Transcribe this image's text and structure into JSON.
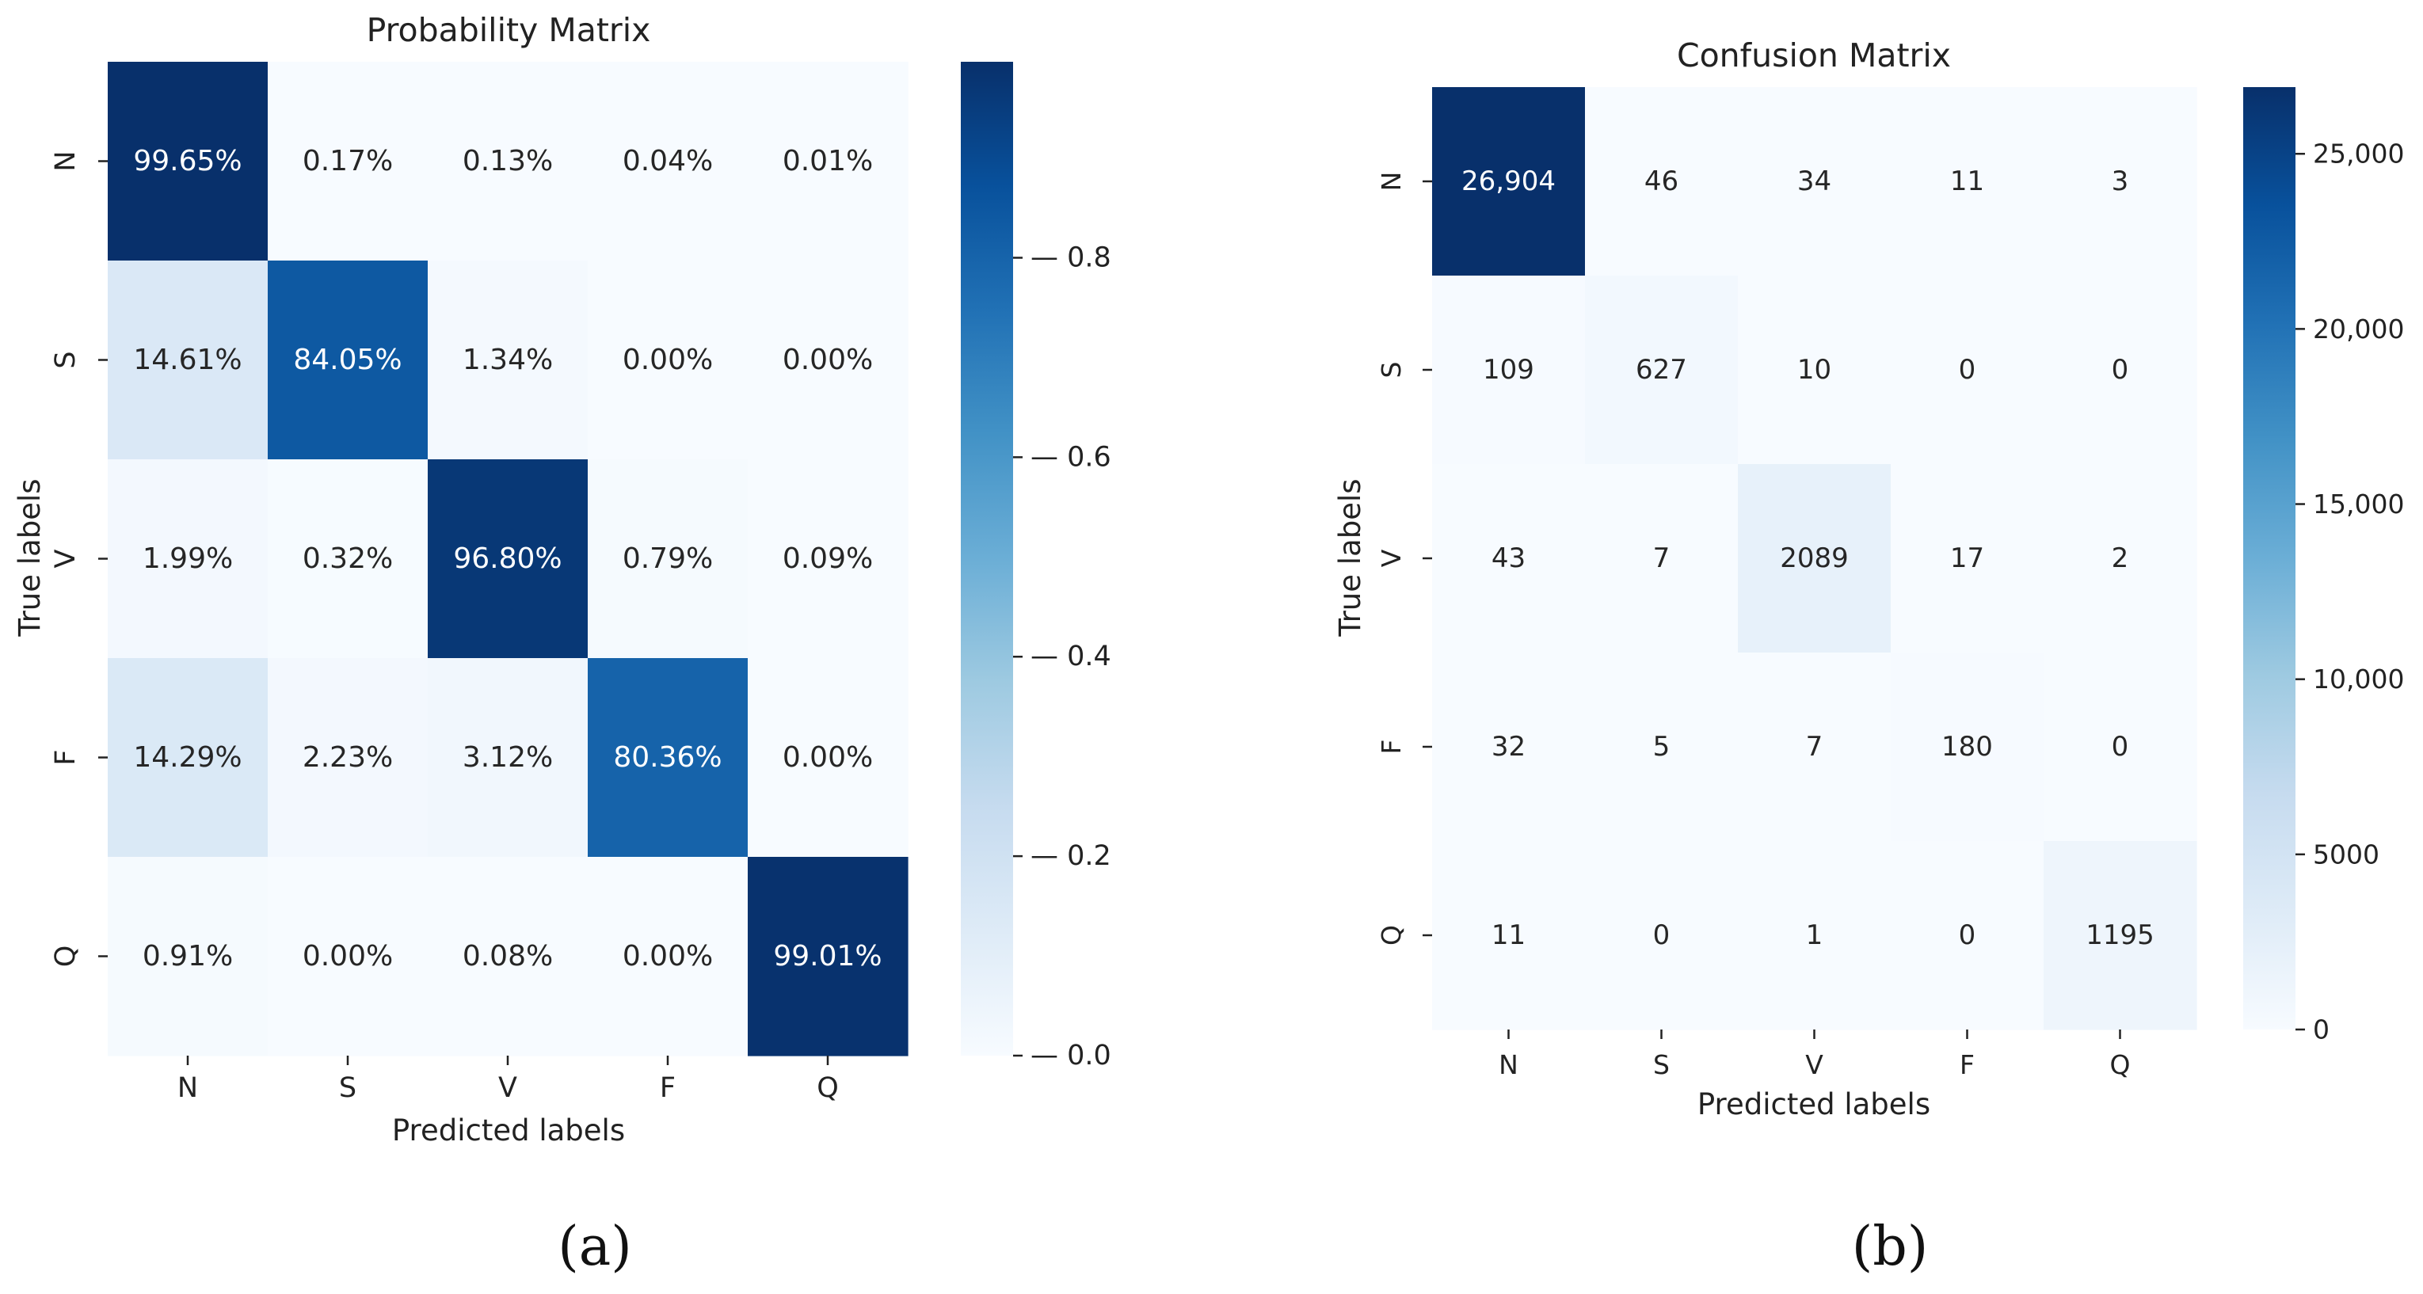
{
  "chart_data": [
    {
      "type": "heatmap",
      "panel": "(a)",
      "title": "Probability Matrix",
      "xlabel": "Predicted labels",
      "ylabel": "True labels",
      "x_categories": [
        "N",
        "S",
        "V",
        "F",
        "Q"
      ],
      "y_categories": [
        "N",
        "S",
        "V",
        "F",
        "Q"
      ],
      "values": [
        [
          0.9965,
          0.0017,
          0.0013,
          0.0004,
          0.0001
        ],
        [
          0.1461,
          0.8405,
          0.0134,
          0.0,
          0.0
        ],
        [
          0.0199,
          0.0032,
          0.968,
          0.0079,
          0.0009
        ],
        [
          0.1429,
          0.0223,
          0.0312,
          0.8036,
          0.0
        ],
        [
          0.0091,
          0.0,
          0.0008,
          0.0,
          0.9901
        ]
      ],
      "annotations": [
        [
          "99.65%",
          "0.17%",
          "0.13%",
          "0.04%",
          "0.01%"
        ],
        [
          "14.61%",
          "84.05%",
          "1.34%",
          "0.00%",
          "0.00%"
        ],
        [
          "1.99%",
          "0.32%",
          "96.80%",
          "0.79%",
          "0.09%"
        ],
        [
          "14.29%",
          "2.23%",
          "3.12%",
          "80.36%",
          "0.00%"
        ],
        [
          "0.91%",
          "0.00%",
          "0.08%",
          "0.00%",
          "99.01%"
        ]
      ],
      "colorbar": {
        "vmin": 0.0,
        "vmax": 0.9965,
        "ticks": [
          0.0,
          0.2,
          0.4,
          0.6,
          0.8
        ],
        "tick_labels": [
          "0.0",
          "0.2",
          "0.4",
          "0.6",
          "0.8"
        ]
      },
      "colormap": "Blues"
    },
    {
      "type": "heatmap",
      "panel": "(b)",
      "title": "Confusion Matrix",
      "xlabel": "Predicted labels",
      "ylabel": "True labels",
      "x_categories": [
        "N",
        "S",
        "V",
        "F",
        "Q"
      ],
      "y_categories": [
        "N",
        "S",
        "V",
        "F",
        "Q"
      ],
      "values": [
        [
          26904,
          46,
          34,
          11,
          3
        ],
        [
          109,
          627,
          10,
          0,
          0
        ],
        [
          43,
          7,
          2089,
          17,
          2
        ],
        [
          32,
          5,
          7,
          180,
          0
        ],
        [
          11,
          0,
          1,
          0,
          1195
        ]
      ],
      "annotations": [
        [
          "26,904",
          "46",
          "34",
          "11",
          "3"
        ],
        [
          "109",
          "627",
          "10",
          "0",
          "0"
        ],
        [
          "43",
          "7",
          "2089",
          "17",
          "2"
        ],
        [
          "32",
          "5",
          "7",
          "180",
          "0"
        ],
        [
          "11",
          "0",
          "1",
          "0",
          "1195"
        ]
      ],
      "colorbar": {
        "vmin": 0,
        "vmax": 26904,
        "ticks": [
          0,
          5000,
          10000,
          15000,
          20000,
          25000
        ],
        "tick_labels": [
          "0",
          "5000",
          "10,000",
          "15,000",
          "20,000",
          "25,000"
        ]
      },
      "colormap": "Blues"
    }
  ],
  "captions": [
    "(a)",
    "(b)"
  ]
}
